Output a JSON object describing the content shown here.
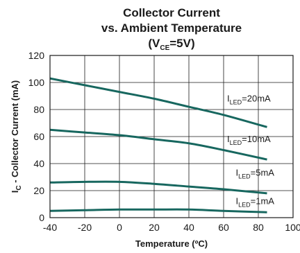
{
  "chart_data": {
    "type": "line",
    "title": {
      "line1": "Collector Current",
      "line2": "vs. Ambient Temperature",
      "line3_open": "(V",
      "line3_sub": "CE",
      "line3_close": "=5V)"
    },
    "xlabel": "Temperature (ºC)",
    "ylabel": {
      "main": "I",
      "sub": "C",
      "rest": " - Collector Current (mA)"
    },
    "xlim": [
      -40,
      100
    ],
    "ylim": [
      0,
      120
    ],
    "xticks": [
      -40,
      -20,
      0,
      20,
      40,
      60,
      80,
      100
    ],
    "yticks": [
      0,
      20,
      40,
      60,
      80,
      100,
      120
    ],
    "grid": true,
    "line_color": "#17675f",
    "series": [
      {
        "label": {
          "main": "I",
          "sub": "LED",
          "value": "=20mA"
        },
        "label_anchor": {
          "x": 62,
          "y": 86
        },
        "points": [
          [
            -40,
            103
          ],
          [
            -20,
            98
          ],
          [
            0,
            93
          ],
          [
            20,
            88
          ],
          [
            40,
            82
          ],
          [
            60,
            76
          ],
          [
            85,
            67
          ]
        ]
      },
      {
        "label": {
          "main": "I",
          "sub": "LED",
          "value": "=10mA"
        },
        "label_anchor": {
          "x": 62,
          "y": 56
        },
        "points": [
          [
            -40,
            65
          ],
          [
            -20,
            63
          ],
          [
            0,
            61
          ],
          [
            20,
            58
          ],
          [
            40,
            55
          ],
          [
            60,
            50
          ],
          [
            85,
            43
          ]
        ]
      },
      {
        "label": {
          "main": "I",
          "sub": "LED",
          "value": "=5mA"
        },
        "label_anchor": {
          "x": 67,
          "y": 31
        },
        "points": [
          [
            -40,
            26
          ],
          [
            -20,
            26.5
          ],
          [
            0,
            26.5
          ],
          [
            20,
            25
          ],
          [
            40,
            23
          ],
          [
            60,
            21
          ],
          [
            85,
            18
          ]
        ]
      },
      {
        "label": {
          "main": "I",
          "sub": "LED",
          "value": "=1mA"
        },
        "label_anchor": {
          "x": 67,
          "y": 10
        },
        "points": [
          [
            -40,
            5
          ],
          [
            -20,
            5.5
          ],
          [
            0,
            6
          ],
          [
            20,
            6
          ],
          [
            40,
            6
          ],
          [
            60,
            5
          ],
          [
            85,
            4
          ]
        ]
      }
    ]
  }
}
